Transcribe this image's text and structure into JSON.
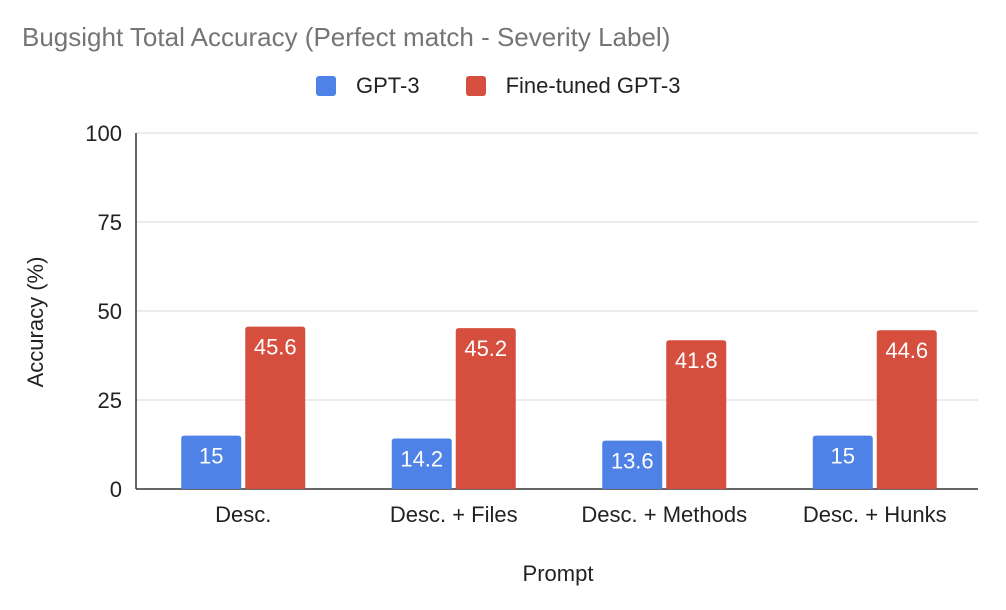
{
  "chart_data": {
    "type": "bar",
    "title": "Bugsight Total Accuracy (Perfect match - Severity Label)",
    "xlabel": "Prompt",
    "ylabel": "Accuracy (%)",
    "categories": [
      "Desc.",
      "Desc. + Files",
      "Desc. + Methods",
      "Desc. + Hunks"
    ],
    "series": [
      {
        "name": "GPT-3",
        "color": "#4e82e6",
        "values": [
          15,
          14.2,
          13.6,
          15
        ],
        "labels": [
          "15",
          "14.2",
          "13.6",
          "15"
        ]
      },
      {
        "name": "Fine-tuned GPT-3",
        "color": "#d64f3e",
        "values": [
          45.6,
          45.2,
          41.8,
          44.6
        ],
        "labels": [
          "45.6",
          "45.2",
          "41.8",
          "44.6"
        ]
      }
    ],
    "ylim": [
      0,
      100
    ],
    "yticks": [
      "0",
      "25",
      "50",
      "75",
      "100"
    ],
    "grid": true,
    "legend_position": "top"
  }
}
